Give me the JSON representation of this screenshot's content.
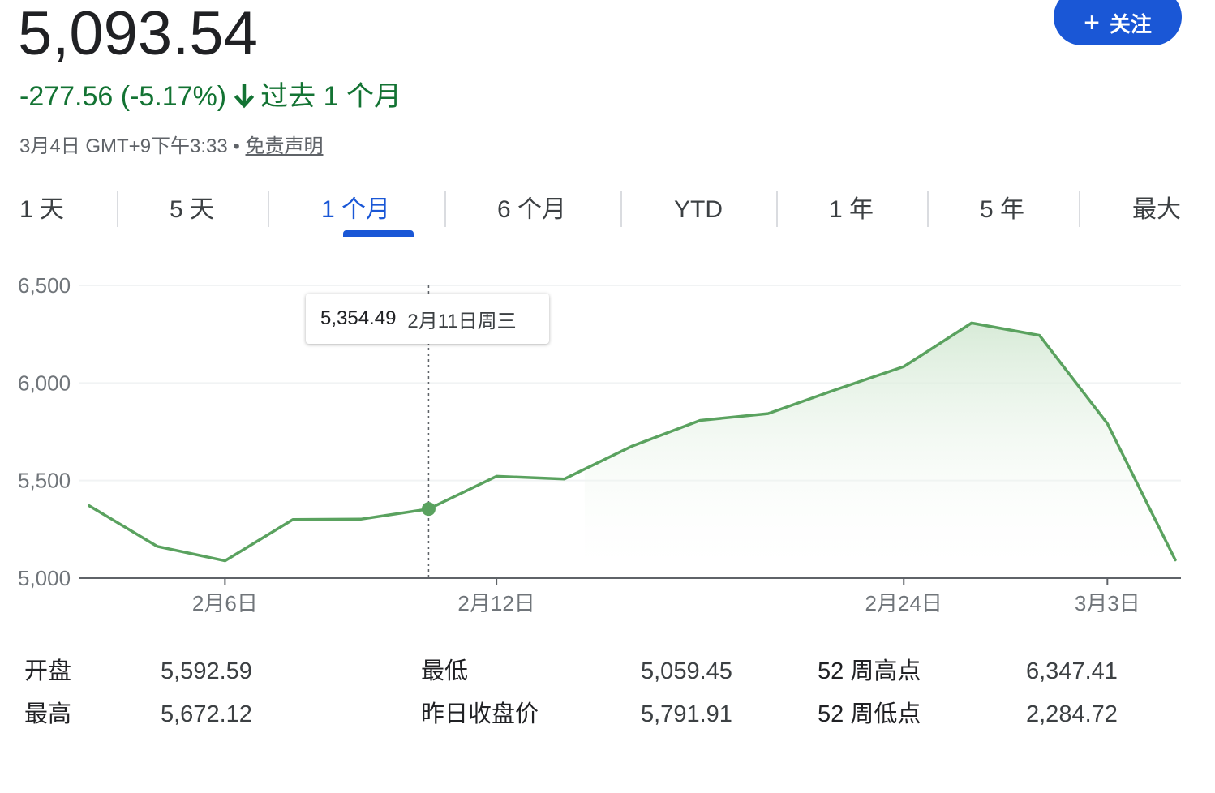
{
  "quote": {
    "price": "5,093.54",
    "change": "-277.56 (-5.17%)",
    "period": "过去 1 个月",
    "timestamp": "3月4日 GMT+9下午3:33 • ",
    "disclaimer": "免责声明"
  },
  "follow_button": {
    "plus": "+",
    "label": "关注"
  },
  "tabs": [
    {
      "label": "1 天",
      "active": false
    },
    {
      "label": "5 天",
      "active": false
    },
    {
      "label": "1 个月",
      "active": true
    },
    {
      "label": "6 个月",
      "active": false
    },
    {
      "label": "YTD",
      "active": false
    },
    {
      "label": "1 年",
      "active": false
    },
    {
      "label": "5 年",
      "active": false
    },
    {
      "label": "最大",
      "active": false
    }
  ],
  "colors": {
    "accent": "#1a57d6",
    "negative": "#137333",
    "line": "#5aa25f",
    "fill": "#d6ead6"
  },
  "tooltip": {
    "value": "5,354.49",
    "date": "2月11日周三"
  },
  "chart_data": {
    "type": "line",
    "x": [
      "2月4日",
      "2月5日",
      "2月6日",
      "2月9日",
      "2月10日",
      "2月11日",
      "2月12日",
      "2月13日",
      "2月16日",
      "2月19日",
      "2月20日",
      "2月23日",
      "2月24日",
      "2月26日",
      "2月27日",
      "3月3日",
      "3月4日"
    ],
    "series": [
      {
        "values": [
          5371,
          5163,
          5089,
          5300,
          5302,
          5354.49,
          5522,
          5508,
          5677,
          5808,
          5843,
          5966,
          6084,
          6307,
          6244,
          5792,
          5093.54
        ]
      }
    ],
    "y_ticks": [
      "6,500",
      "6,000",
      "5,500",
      "5,000"
    ],
    "y_tick_values": [
      6500,
      6000,
      5500,
      5000
    ],
    "x_tick_labels": [
      "2月6日",
      "2月12日",
      "2月24日",
      "3月3日"
    ],
    "x_tick_index": [
      2,
      6,
      12,
      15
    ],
    "ylim": [
      5000,
      6500
    ],
    "highlight_index": 5,
    "grid": true
  },
  "stats": [
    {
      "label": "开盘",
      "value": "5,592.59"
    },
    {
      "label": "最高",
      "value": "5,672.12"
    },
    {
      "label": "最低",
      "value": "5,059.45"
    },
    {
      "label": "昨日收盘价",
      "value": "5,791.91"
    },
    {
      "label": "52 周高点",
      "value": "6,347.41"
    },
    {
      "label": "52 周低点",
      "value": "2,284.72"
    }
  ]
}
